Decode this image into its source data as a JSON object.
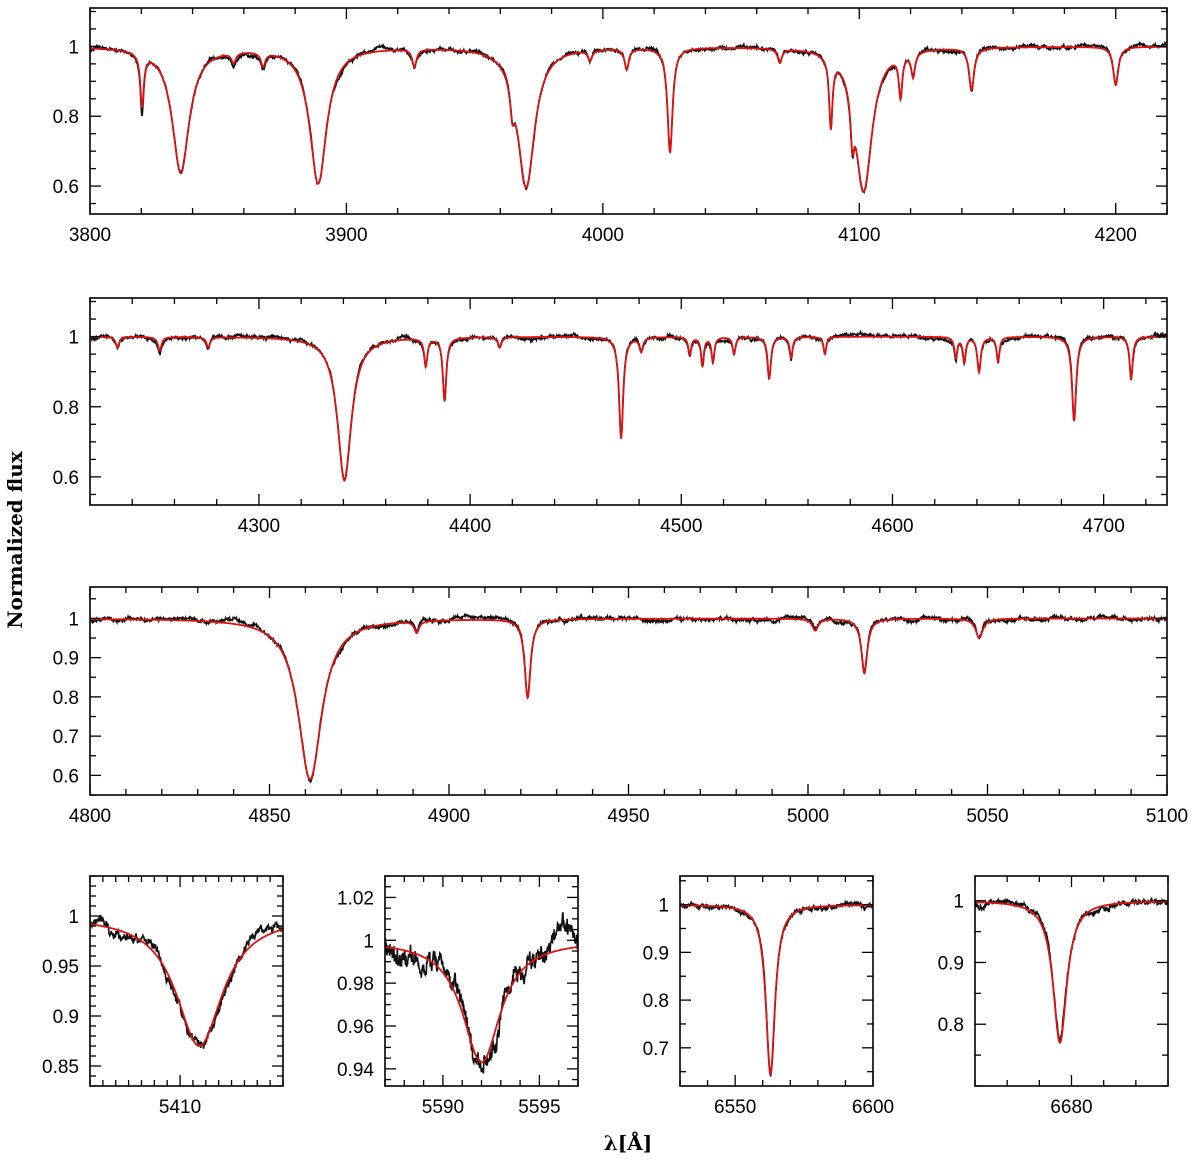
{
  "figure": {
    "ylabel": "Normalized flux",
    "xlabel": "λ[Å]"
  },
  "colors": {
    "observed": "#111111",
    "model": "#dd1111",
    "frame": "#000000"
  },
  "chart_data": [
    {
      "type": "line",
      "xlim": [
        3800,
        4220
      ],
      "ylim": [
        0.52,
        1.11
      ],
      "xticks": [
        3800,
        3900,
        4000,
        4100,
        4200
      ],
      "xminor": 20,
      "yticks": [
        0.6,
        0.8,
        1
      ],
      "yminor": 0.05,
      "lines": [
        {
          "c": 3820.3,
          "d": 0.15,
          "w": 0.8,
          "m": 0.02
        },
        {
          "c": 3835.4,
          "d": 0.36,
          "w": 4.0
        },
        {
          "c": 3856.0,
          "d": 0.03,
          "w": 1.0
        },
        {
          "c": 3867.5,
          "d": 0.04,
          "w": 1.0
        },
        {
          "c": 3889.0,
          "d": 0.39,
          "w": 4.0
        },
        {
          "c": 3926.5,
          "d": 0.05,
          "w": 1.0
        },
        {
          "c": 3964.7,
          "d": 0.08,
          "w": 1.0
        },
        {
          "c": 3970.1,
          "d": 0.4,
          "w": 4.0
        },
        {
          "c": 3995.0,
          "d": 0.03,
          "w": 1.0
        },
        {
          "c": 4009.3,
          "d": 0.06,
          "w": 1.0
        },
        {
          "c": 4026.2,
          "d": 0.3,
          "w": 1.2
        },
        {
          "c": 4069.0,
          "d": 0.04,
          "w": 1.0
        },
        {
          "c": 4088.9,
          "d": 0.2,
          "w": 0.8
        },
        {
          "c": 4097.3,
          "d": 0.12,
          "w": 0.8
        },
        {
          "c": 4101.7,
          "d": 0.41,
          "w": 4.0
        },
        {
          "c": 4116.1,
          "d": 0.12,
          "w": 0.8
        },
        {
          "c": 4121.0,
          "d": 0.07,
          "w": 0.9
        },
        {
          "c": 4143.8,
          "d": 0.12,
          "w": 1.2
        },
        {
          "c": 4200.0,
          "d": 0.11,
          "w": 1.2
        }
      ]
    },
    {
      "type": "line",
      "xlim": [
        4220,
        4730
      ],
      "ylim": [
        0.52,
        1.11
      ],
      "xticks": [
        4300,
        4400,
        4500,
        4600,
        4700
      ],
      "xminor": 20,
      "yticks": [
        0.6,
        0.8,
        1
      ],
      "yminor": 0.05,
      "lines": [
        {
          "c": 4233.0,
          "d": 0.03,
          "w": 1.0
        },
        {
          "c": 4253.0,
          "d": 0.04,
          "w": 1.0
        },
        {
          "c": 4276.0,
          "d": 0.03,
          "w": 1.0
        },
        {
          "c": 4340.5,
          "d": 0.41,
          "w": 4.0
        },
        {
          "c": 4379.0,
          "d": 0.08,
          "w": 0.9
        },
        {
          "c": 4387.9,
          "d": 0.18,
          "w": 1.0
        },
        {
          "c": 4414.0,
          "d": 0.03,
          "w": 1.0
        },
        {
          "c": 4471.5,
          "d": 0.29,
          "w": 1.2
        },
        {
          "c": 4481.0,
          "d": 0.04,
          "w": 1.0
        },
        {
          "c": 4504.0,
          "d": 0.05,
          "w": 0.8
        },
        {
          "c": 4510.0,
          "d": 0.08,
          "w": 0.8
        },
        {
          "c": 4515.0,
          "d": 0.07,
          "w": 0.8
        },
        {
          "c": 4525.0,
          "d": 0.05,
          "w": 0.8
        },
        {
          "c": 4541.6,
          "d": 0.12,
          "w": 1.0
        },
        {
          "c": 4552.0,
          "d": 0.06,
          "w": 0.8
        },
        {
          "c": 4568.0,
          "d": 0.05,
          "w": 0.8
        },
        {
          "c": 4630.0,
          "d": 0.06,
          "w": 0.8
        },
        {
          "c": 4634.0,
          "d": 0.07,
          "w": 0.8
        },
        {
          "c": 4641.0,
          "d": 0.1,
          "w": 1.0
        },
        {
          "c": 4650.0,
          "d": 0.07,
          "w": 0.8
        },
        {
          "c": 4686.0,
          "d": 0.24,
          "w": 1.2
        },
        {
          "c": 4713.0,
          "d": 0.12,
          "w": 0.9
        }
      ]
    },
    {
      "type": "line",
      "xlim": [
        4800,
        5100
      ],
      "ylim": [
        0.55,
        1.08
      ],
      "xticks": [
        4800,
        4850,
        4900,
        4950,
        5000,
        5050,
        5100
      ],
      "xminor": 10,
      "yticks": [
        0.6,
        0.7,
        0.8,
        0.9,
        1
      ],
      "yminor": 0.05,
      "lines": [
        {
          "c": 4861.3,
          "d": 0.41,
          "w": 4.0
        },
        {
          "c": 4891.0,
          "d": 0.03,
          "w": 0.8
        },
        {
          "c": 4921.9,
          "d": 0.2,
          "w": 1.0
        },
        {
          "c": 5002.0,
          "d": 0.03,
          "w": 1.0
        },
        {
          "c": 5015.7,
          "d": 0.14,
          "w": 1.0
        },
        {
          "c": 5047.7,
          "d": 0.05,
          "w": 1.2
        }
      ]
    },
    {
      "type": "line",
      "xlim": [
        5403,
        5418
      ],
      "ylim": [
        0.83,
        1.04
      ],
      "xticks": [
        5410
      ],
      "xminor": 1,
      "yticks": [
        0.85,
        0.9,
        0.95,
        1
      ],
      "yminor": 0.01,
      "lines": [
        {
          "c": 5411.5,
          "d": 0.13,
          "w": 2.2
        }
      ]
    },
    {
      "type": "line",
      "xlim": [
        5587,
        5597
      ],
      "ylim": [
        0.932,
        1.03
      ],
      "xticks": [
        5590,
        5595
      ],
      "xminor": 1,
      "yticks": [
        0.94,
        0.96,
        0.98,
        1,
        1.02
      ],
      "yminor": 0.005,
      "lines": [
        {
          "c": 5592.0,
          "d": 0.057,
          "w": 1.2
        }
      ]
    },
    {
      "type": "line",
      "xlim": [
        6530,
        6600
      ],
      "ylim": [
        0.62,
        1.06
      ],
      "xticks": [
        6550,
        6600
      ],
      "xminor": 10,
      "yticks": [
        0.7,
        0.8,
        0.9,
        1
      ],
      "yminor": 0.05,
      "lines": [
        {
          "c": 6562.8,
          "d": 0.355,
          "w": 2.0
        }
      ]
    },
    {
      "type": "line",
      "xlim": [
        6665,
        6695
      ],
      "ylim": [
        0.7,
        1.04
      ],
      "xticks": [
        6680
      ],
      "xminor": 5,
      "yticks": [
        0.8,
        0.9,
        1
      ],
      "yminor": 0.05,
      "lines": [
        {
          "c": 6678.2,
          "d": 0.23,
          "w": 1.3
        }
      ]
    }
  ]
}
